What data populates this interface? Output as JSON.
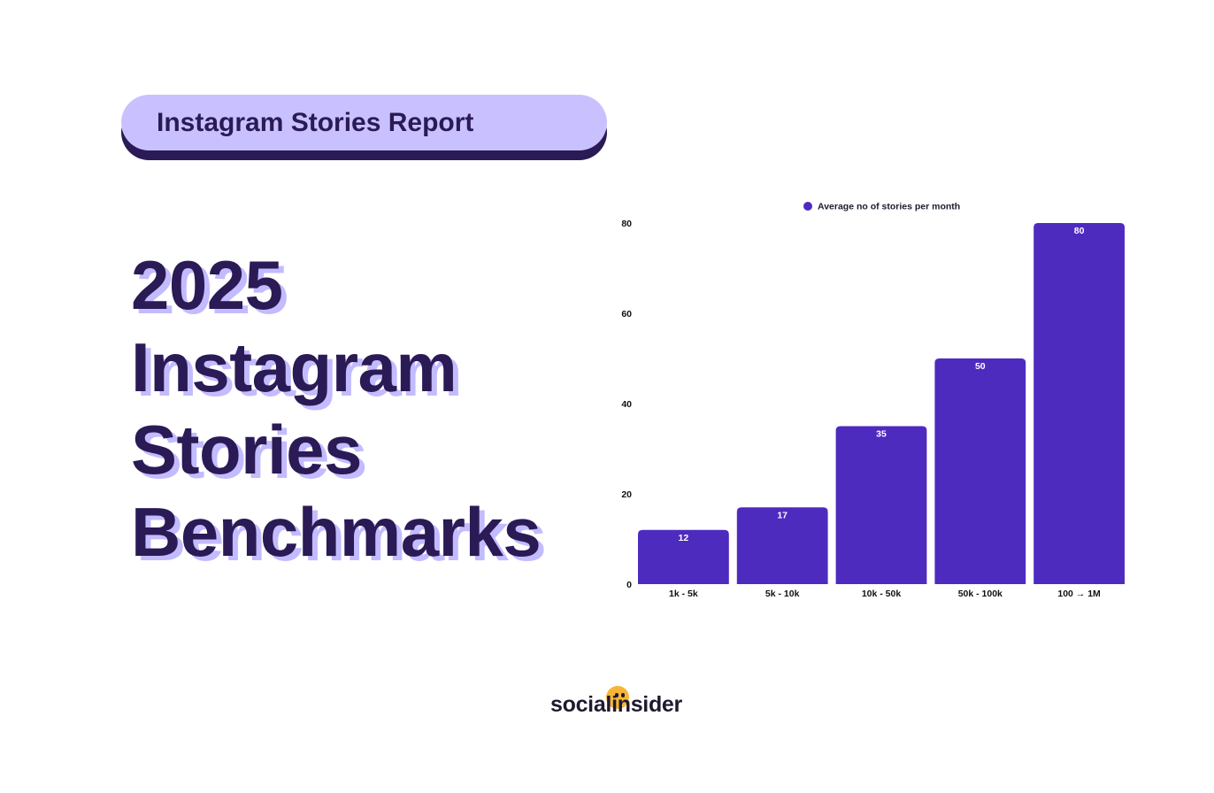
{
  "report_tag": "Instagram Stories Report",
  "headline": [
    "2025",
    "Instagram",
    "Stories",
    "Benchmarks"
  ],
  "logo": {
    "text": "socialinsider"
  },
  "colors": {
    "bar": "#4e2bbf",
    "headline": "#2a1a55",
    "pill": "#c9c1ff",
    "accent": "#f7b538"
  },
  "chart_data": {
    "type": "bar",
    "categories": [
      "1k - 5k",
      "5k - 10k",
      "10k - 50k",
      "50k - 100k",
      "100 → 1M"
    ],
    "series": [
      {
        "name": "Average no of stories per month",
        "values": [
          12,
          17,
          35,
          50,
          80
        ]
      }
    ],
    "data_labels": [
      "12",
      "17",
      "35",
      "50",
      "80"
    ],
    "ylim": [
      0,
      80
    ],
    "yticks": [
      0,
      20,
      40,
      60,
      80
    ],
    "grid": false,
    "legend": "top-center"
  }
}
